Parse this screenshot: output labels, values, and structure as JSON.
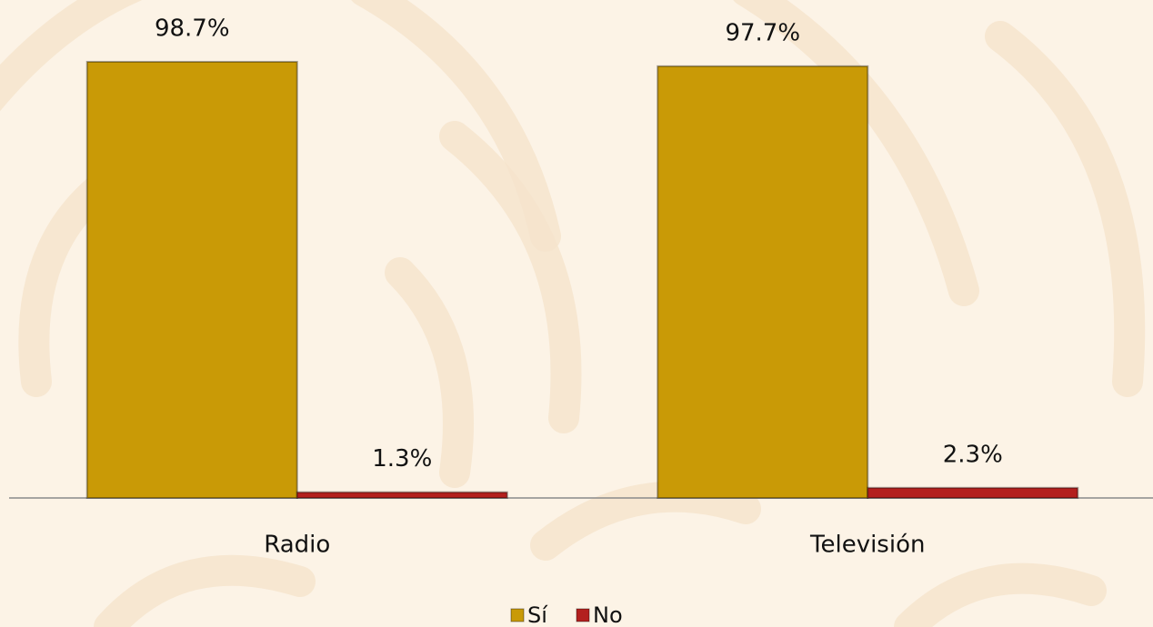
{
  "chart_data": {
    "type": "bar",
    "categories": [
      "Radio",
      "Televisión"
    ],
    "series": [
      {
        "name": "Sí",
        "color": "#c99a06",
        "values": [
          98.7,
          97.7
        ],
        "value_labels": [
          "98.7%",
          "97.7%"
        ]
      },
      {
        "name": "No",
        "color": "#b3201e",
        "values": [
          1.3,
          2.3
        ],
        "value_labels": [
          "1.3%",
          "2.3%"
        ]
      }
    ],
    "legend": "bottom"
  }
}
